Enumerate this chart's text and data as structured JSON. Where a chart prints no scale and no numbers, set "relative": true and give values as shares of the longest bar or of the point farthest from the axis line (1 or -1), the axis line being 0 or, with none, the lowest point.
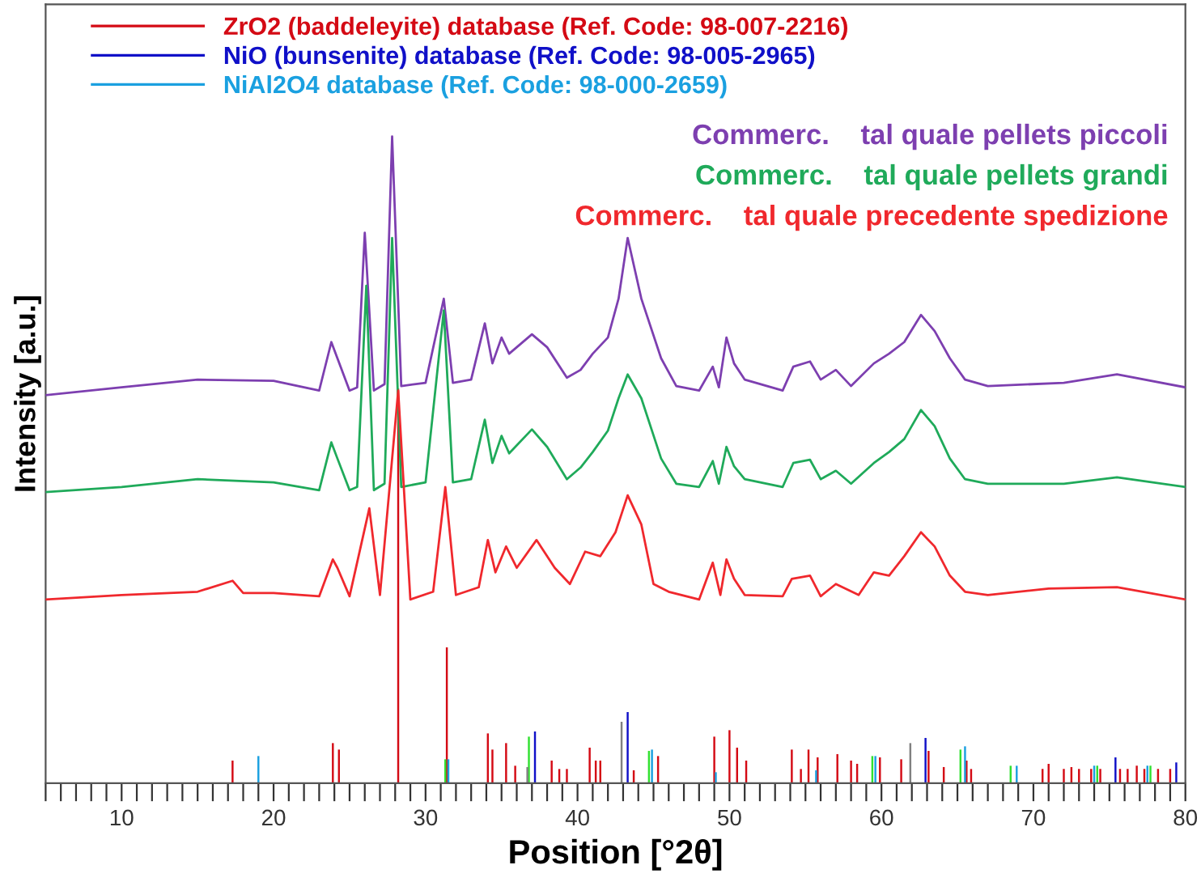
{
  "chart_data": {
    "type": "line",
    "relative": true,
    "xlabel": "Position [°2θ]",
    "ylabel": "Intensity [a.u.]",
    "xlim": [
      5,
      80
    ],
    "xticks": [
      {
        "value": 5,
        "label": null
      },
      {
        "value": 6,
        "label": null
      },
      {
        "value": 7,
        "label": null
      },
      {
        "value": 8,
        "label": null
      },
      {
        "value": 9,
        "label": null
      },
      10,
      {
        "value": 11,
        "label": null
      },
      {
        "value": 12,
        "label": null
      },
      {
        "value": 13,
        "label": null
      },
      {
        "value": 14,
        "label": null
      },
      {
        "value": 15,
        "label": null
      },
      {
        "value": 16,
        "label": null
      },
      {
        "value": 17,
        "label": null
      },
      {
        "value": 18,
        "label": null
      },
      {
        "value": 19,
        "label": null
      },
      20,
      {
        "value": 21,
        "label": null
      },
      {
        "value": 22,
        "label": null
      },
      {
        "value": 23,
        "label": null
      },
      {
        "value": 24,
        "label": null
      },
      {
        "value": 25,
        "label": null
      },
      {
        "value": 26,
        "label": null
      },
      {
        "value": 27,
        "label": null
      },
      {
        "value": 28,
        "label": null
      },
      {
        "value": 29,
        "label": null
      },
      30,
      {
        "value": 31,
        "label": null
      },
      {
        "value": 32,
        "label": null
      },
      {
        "value": 33,
        "label": null
      },
      {
        "value": 34,
        "label": null
      },
      {
        "value": 35,
        "label": null
      },
      {
        "value": 36,
        "label": null
      },
      {
        "value": 37,
        "label": null
      },
      {
        "value": 38,
        "label": null
      },
      {
        "value": 39,
        "label": null
      },
      40,
      {
        "value": 41,
        "label": null
      },
      {
        "value": 42,
        "label": null
      },
      {
        "value": 43,
        "label": null
      },
      {
        "value": 44,
        "label": null
      },
      {
        "value": 45,
        "label": null
      },
      {
        "value": 46,
        "label": null
      },
      {
        "value": 47,
        "label": null
      },
      {
        "value": 48,
        "label": null
      },
      {
        "value": 49,
        "label": null
      },
      50,
      {
        "value": 51,
        "label": null
      },
      {
        "value": 52,
        "label": null
      },
      {
        "value": 53,
        "label": null
      },
      {
        "value": 54,
        "label": null
      },
      {
        "value": 55,
        "label": null
      },
      {
        "value": 56,
        "label": null
      },
      {
        "value": 57,
        "label": null
      },
      {
        "value": 58,
        "label": null
      },
      {
        "value": 59,
        "label": null
      },
      60,
      {
        "value": 61,
        "label": null
      },
      {
        "value": 62,
        "label": null
      },
      {
        "value": 63,
        "label": null
      },
      {
        "value": 64,
        "label": null
      },
      {
        "value": 65,
        "label": null
      },
      {
        "value": 66,
        "label": null
      },
      {
        "value": 67,
        "label": null
      },
      {
        "value": 68,
        "label": null
      },
      {
        "value": 69,
        "label": null
      },
      70,
      {
        "value": 71,
        "label": null
      },
      {
        "value": 72,
        "label": null
      },
      {
        "value": 73,
        "label": null
      },
      {
        "value": 74,
        "label": null
      },
      {
        "value": 75,
        "label": null
      },
      {
        "value": 76,
        "label": null
      },
      {
        "value": 77,
        "label": null
      },
      {
        "value": 78,
        "label": null
      },
      {
        "value": 79,
        "label": null
      },
      80
    ],
    "grid": false,
    "legend": "top left",
    "marker": "none",
    "line_style": "solid",
    "series": [
      {
        "name": "Commerc.    tal quale pellets piccoli",
        "color": "#7d3fb0",
        "x": [
          5,
          10,
          15,
          20,
          23,
          23.8,
          24.2,
          25,
          25.5,
          26.0,
          26.6,
          27.3,
          27.8,
          28.4,
          30,
          31.2,
          31.8,
          33,
          33.9,
          34.4,
          35,
          35.5,
          37,
          38,
          39.3,
          40.2,
          41,
          42,
          42.7,
          43.3,
          44.2,
          45.5,
          46.5,
          48,
          48.9,
          49.3,
          49.8,
          50.3,
          51,
          53.5,
          54.2,
          55.3,
          56,
          57,
          58,
          59.5,
          60.5,
          61.5,
          62.6,
          63.5,
          64.5,
          65.5,
          67,
          72,
          75.5,
          80
        ],
        "values": [
          0.6,
          0.612,
          0.624,
          0.622,
          0.607,
          0.682,
          0.657,
          0.607,
          0.612,
          0.851,
          0.607,
          0.617,
          1.0,
          0.614,
          0.619,
          0.749,
          0.619,
          0.624,
          0.711,
          0.649,
          0.689,
          0.664,
          0.694,
          0.674,
          0.627,
          0.639,
          0.664,
          0.689,
          0.749,
          0.843,
          0.749,
          0.657,
          0.614,
          0.607,
          0.644,
          0.612,
          0.689,
          0.649,
          0.624,
          0.607,
          0.644,
          0.652,
          0.624,
          0.639,
          0.614,
          0.649,
          0.664,
          0.682,
          0.724,
          0.699,
          0.657,
          0.624,
          0.614,
          0.619,
          0.632,
          0.612
        ]
      },
      {
        "name": "Commerc.    tal quale pellets grandi",
        "color": "#1faa5a",
        "x": [
          5,
          10,
          15,
          20,
          23,
          23.8,
          24.2,
          25,
          25.5,
          26.1,
          26.6,
          27.3,
          27.8,
          28.4,
          30,
          31.2,
          31.8,
          33,
          33.9,
          34.4,
          35,
          35.5,
          37,
          38,
          39.3,
          40.2,
          41,
          42,
          42.7,
          43.3,
          44.2,
          45.5,
          46.5,
          48,
          48.9,
          49.3,
          49.8,
          50.3,
          51,
          53.5,
          54.2,
          55.3,
          56,
          57,
          58,
          59.5,
          60.5,
          61.5,
          62.6,
          63.5,
          64.5,
          65.5,
          67,
          72,
          75.5,
          80
        ],
        "values": [
          0.45,
          0.458,
          0.47,
          0.465,
          0.453,
          0.527,
          0.502,
          0.453,
          0.458,
          0.769,
          0.453,
          0.463,
          0.843,
          0.458,
          0.465,
          0.731,
          0.465,
          0.47,
          0.562,
          0.495,
          0.537,
          0.51,
          0.547,
          0.52,
          0.47,
          0.488,
          0.512,
          0.545,
          0.595,
          0.632,
          0.595,
          0.502,
          0.463,
          0.458,
          0.498,
          0.463,
          0.52,
          0.49,
          0.47,
          0.458,
          0.495,
          0.5,
          0.47,
          0.483,
          0.463,
          0.495,
          0.512,
          0.532,
          0.577,
          0.552,
          0.502,
          0.47,
          0.463,
          0.463,
          0.473,
          0.458
        ]
      },
      {
        "name": "Commerc.    tal quale precedente spedizione",
        "color": "#f0282d",
        "x": [
          5,
          10,
          15,
          17.3,
          18,
          20,
          23,
          23.9,
          24.2,
          25,
          26.3,
          27,
          28.2,
          29,
          30.5,
          31.3,
          32,
          33.5,
          34.1,
          34.6,
          35.3,
          36,
          37.3,
          38.5,
          39.5,
          40.5,
          41.5,
          42.5,
          43.3,
          44.2,
          45,
          46,
          48,
          48.9,
          49.4,
          49.8,
          50.3,
          51,
          53.5,
          54.1,
          55.3,
          56,
          57,
          58.5,
          59.5,
          60.5,
          61.5,
          62.6,
          63.5,
          64.5,
          65.5,
          67,
          71,
          75.5,
          80
        ],
        "values": [
          0.284,
          0.291,
          0.296,
          0.313,
          0.294,
          0.294,
          0.289,
          0.346,
          0.333,
          0.289,
          0.425,
          0.291,
          0.607,
          0.284,
          0.296,
          0.458,
          0.291,
          0.303,
          0.376,
          0.326,
          0.366,
          0.333,
          0.376,
          0.333,
          0.308,
          0.358,
          0.351,
          0.388,
          0.445,
          0.4,
          0.308,
          0.296,
          0.284,
          0.341,
          0.291,
          0.346,
          0.316,
          0.291,
          0.289,
          0.316,
          0.321,
          0.289,
          0.308,
          0.291,
          0.326,
          0.321,
          0.351,
          0.388,
          0.366,
          0.321,
          0.296,
          0.291,
          0.301,
          0.303,
          0.284
        ]
      },
      {
        "type": "bar",
        "name": "ZrO2 (baddeleyite) database (Ref. Code: 98-007-2216)",
        "color": "#d40a14",
        "x": [
          17.3,
          23.9,
          24.3,
          28.2,
          31.4,
          34.1,
          34.4,
          35.3,
          35.9,
          38.3,
          38.8,
          39.3,
          40.8,
          41.2,
          41.5,
          43.7,
          45.3,
          49.0,
          50.0,
          50.5,
          51.1,
          54.1,
          54.7,
          55.2,
          55.8,
          57.1,
          58.0,
          58.4,
          59.9,
          61.3,
          63.1,
          64.1,
          65.6,
          65.9,
          70.6,
          71.0,
          72.0,
          72.5,
          73.0,
          73.8,
          74.4,
          75.7,
          76.2,
          76.8,
          77.3,
          78.2,
          79.0
        ],
        "values": [
          0.035,
          0.062,
          0.052,
          0.61,
          0.21,
          0.077,
          0.052,
          0.062,
          0.027,
          0.035,
          0.022,
          0.022,
          0.055,
          0.035,
          0.035,
          0.02,
          0.042,
          0.072,
          0.082,
          0.055,
          0.035,
          0.052,
          0.022,
          0.052,
          0.04,
          0.045,
          0.035,
          0.03,
          0.04,
          0.037,
          0.05,
          0.025,
          0.035,
          0.022,
          0.022,
          0.03,
          0.022,
          0.025,
          0.022,
          0.022,
          0.022,
          0.022,
          0.022,
          0.027,
          0.022,
          0.022,
          0.022
        ]
      },
      {
        "type": "bar",
        "name": "NiO (bunsenite) database (Ref. Code: 98-005-2965)",
        "color": "#1010c8",
        "x": [
          37.2,
          43.3,
          62.9,
          75.4,
          79.4
        ],
        "values": [
          0.08,
          0.11,
          0.07,
          0.04,
          0.032
        ]
      },
      {
        "type": "bar",
        "name": "NiAl2O4 database (Ref. Code: 98-000-2659)",
        "color": "#1aa0e0",
        "x": [
          19.0,
          31.5,
          44.9,
          49.1,
          55.7,
          59.6,
          65.5,
          68.9,
          74.0,
          77.5
        ],
        "values": [
          0.042,
          0.037,
          0.052,
          0.017,
          0.02,
          0.042,
          0.057,
          0.027,
          0.027,
          0.027
        ]
      },
      {
        "type": "bar",
        "color": "#30e030",
        "x": [
          31.3,
          36.8,
          44.7,
          59.4,
          65.2,
          68.5,
          74.2,
          77.7
        ],
        "values": [
          0.037,
          0.072,
          0.05,
          0.042,
          0.052,
          0.027,
          0.027,
          0.027
        ]
      },
      {
        "type": "bar",
        "color": "#808080",
        "x": [
          36.7,
          42.9,
          61.9
        ],
        "values": [
          0.025,
          0.095,
          0.062
        ]
      }
    ]
  }
}
